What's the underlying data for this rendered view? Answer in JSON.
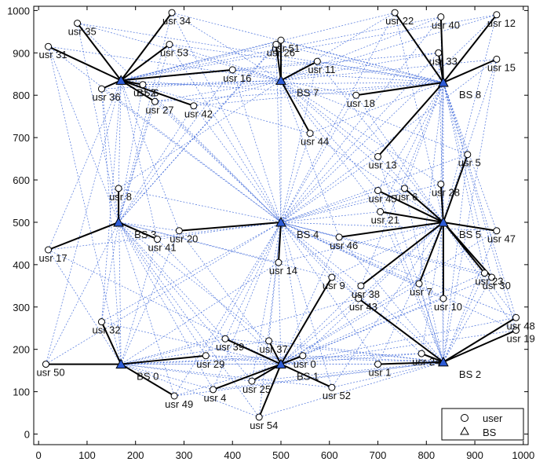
{
  "chart_data": {
    "type": "scatter",
    "title": "",
    "xlabel": "",
    "ylabel": "",
    "xlim": [
      -10,
      1010
    ],
    "ylim": [
      -25,
      1010
    ],
    "x_ticks": [
      0,
      100,
      200,
      300,
      400,
      500,
      600,
      700,
      800,
      900,
      1000
    ],
    "y_ticks": [
      0,
      100,
      200,
      300,
      400,
      500,
      600,
      700,
      800,
      900,
      1000
    ],
    "grid": false,
    "legend_position": "bottom-right",
    "legend": [
      {
        "marker": "circle",
        "label": "user"
      },
      {
        "marker": "triangle",
        "label": "BS"
      }
    ],
    "colors": {
      "assoc_line": "#000000",
      "mesh_line": "#2d5bd6",
      "bs_marker": "#2d5bd6"
    },
    "base_stations": [
      {
        "id": 0,
        "label": "BS 0",
        "x": 170,
        "y": 165
      },
      {
        "id": 1,
        "label": "BS 1",
        "x": 500,
        "y": 165
      },
      {
        "id": 2,
        "label": "BS 2",
        "x": 835,
        "y": 170
      },
      {
        "id": 3,
        "label": "BS 3",
        "x": 165,
        "y": 500
      },
      {
        "id": 4,
        "label": "BS 4",
        "x": 500,
        "y": 500
      },
      {
        "id": 5,
        "label": "BS 5",
        "x": 835,
        "y": 500
      },
      {
        "id": 6,
        "label": "BS 6",
        "x": 170,
        "y": 835
      },
      {
        "id": 7,
        "label": "BS 7",
        "x": 500,
        "y": 835
      },
      {
        "id": 8,
        "label": "BS 8",
        "x": 835,
        "y": 830
      }
    ],
    "users": [
      {
        "label": "usr 0",
        "x": 545,
        "y": 185,
        "bs": 1
      },
      {
        "label": "usr 1",
        "x": 700,
        "y": 165,
        "bs": 2
      },
      {
        "label": "usr 2",
        "x": 215,
        "y": 825,
        "bs": 6
      },
      {
        "label": "usr 4",
        "x": 360,
        "y": 105,
        "bs": 1
      },
      {
        "label": "usr 5",
        "x": 885,
        "y": 660,
        "bs": 5
      },
      {
        "label": "usr 6",
        "x": 755,
        "y": 580,
        "bs": 5
      },
      {
        "label": "usr 7",
        "x": 785,
        "y": 355,
        "bs": 5
      },
      {
        "label": "usr 8",
        "x": 165,
        "y": 580,
        "bs": 3
      },
      {
        "label": "usr 9",
        "x": 605,
        "y": 370,
        "bs": 1
      },
      {
        "label": "usr 10",
        "x": 835,
        "y": 320,
        "bs": 5
      },
      {
        "label": "usr 11",
        "x": 575,
        "y": 880,
        "bs": 7
      },
      {
        "label": "usr 12",
        "x": 945,
        "y": 990,
        "bs": 8
      },
      {
        "label": "usr 13",
        "x": 700,
        "y": 655,
        "bs": 8
      },
      {
        "label": "usr 14",
        "x": 495,
        "y": 405,
        "bs": 4
      },
      {
        "label": "usr 15",
        "x": 945,
        "y": 885,
        "bs": 8
      },
      {
        "label": "usr 16",
        "x": 400,
        "y": 860,
        "bs": 6
      },
      {
        "label": "usr 17",
        "x": 20,
        "y": 435,
        "bs": 3
      },
      {
        "label": "usr 18",
        "x": 655,
        "y": 800,
        "bs": 8
      },
      {
        "label": "usr 19",
        "x": 985,
        "y": 245,
        "bs": 2
      },
      {
        "label": "usr 20",
        "x": 290,
        "y": 480,
        "bs": 4
      },
      {
        "label": "usr 21",
        "x": 705,
        "y": 525,
        "bs": 5
      },
      {
        "label": "usr 22",
        "x": 735,
        "y": 995,
        "bs": 8
      },
      {
        "label": "usr 23",
        "x": 920,
        "y": 380,
        "bs": 5
      },
      {
        "label": "usr 24",
        "x": 790,
        "y": 190,
        "bs": 2
      },
      {
        "label": "usr 25",
        "x": 440,
        "y": 125,
        "bs": 1
      },
      {
        "label": "usr 26",
        "x": 490,
        "y": 920,
        "bs": 7
      },
      {
        "label": "usr 27",
        "x": 240,
        "y": 785,
        "bs": 6
      },
      {
        "label": "usr 28",
        "x": 830,
        "y": 590,
        "bs": 5
      },
      {
        "label": "usr 29",
        "x": 345,
        "y": 185,
        "bs": 0
      },
      {
        "label": "usr 30",
        "x": 935,
        "y": 370,
        "bs": 5
      },
      {
        "label": "usr 31",
        "x": 20,
        "y": 915,
        "bs": 6
      },
      {
        "label": "usr 32",
        "x": 130,
        "y": 265,
        "bs": 0
      },
      {
        "label": "usr 33",
        "x": 825,
        "y": 900,
        "bs": 8
      },
      {
        "label": "usr 34",
        "x": 275,
        "y": 995,
        "bs": 6
      },
      {
        "label": "usr 35",
        "x": 80,
        "y": 970,
        "bs": 6
      },
      {
        "label": "usr 36",
        "x": 130,
        "y": 815,
        "bs": 6
      },
      {
        "label": "usr 37",
        "x": 475,
        "y": 220,
        "bs": 1
      },
      {
        "label": "usr 38",
        "x": 665,
        "y": 350,
        "bs": 5
      },
      {
        "label": "usr 39",
        "x": 385,
        "y": 225,
        "bs": 1
      },
      {
        "label": "usr 40",
        "x": 830,
        "y": 985,
        "bs": 8
      },
      {
        "label": "usr 41",
        "x": 245,
        "y": 460,
        "bs": 3
      },
      {
        "label": "usr 42",
        "x": 320,
        "y": 775,
        "bs": 6
      },
      {
        "label": "usr 43",
        "x": 660,
        "y": 320,
        "bs": 2
      },
      {
        "label": "usr 44",
        "x": 560,
        "y": 710,
        "bs": 7
      },
      {
        "label": "usr 45",
        "x": 700,
        "y": 575,
        "bs": 5
      },
      {
        "label": "usr 46",
        "x": 620,
        "y": 465,
        "bs": 5
      },
      {
        "label": "usr 47",
        "x": 945,
        "y": 480,
        "bs": 5
      },
      {
        "label": "usr 48",
        "x": 985,
        "y": 275,
        "bs": 2
      },
      {
        "label": "usr 49",
        "x": 280,
        "y": 90,
        "bs": 0
      },
      {
        "label": "usr 50",
        "x": 15,
        "y": 165,
        "bs": 0
      },
      {
        "label": "usr 51",
        "x": 500,
        "y": 930,
        "bs": 7
      },
      {
        "label": "usr 52",
        "x": 605,
        "y": 110,
        "bs": 1
      },
      {
        "label": "usr 53",
        "x": 270,
        "y": 920,
        "bs": 6
      },
      {
        "label": "usr 54",
        "x": 455,
        "y": 40,
        "bs": 1
      }
    ]
  }
}
